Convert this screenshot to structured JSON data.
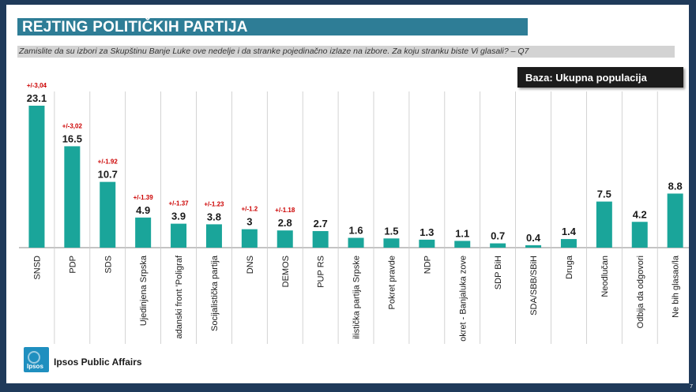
{
  "title": "REJTING POLITIČKIH PARTIJA",
  "question": "Zamislite da su izbori za Skupštinu Banje Luke ove nedelje i da stranke pojedinačno izlaze na izbore. Za koju stranku biste Vi glasali? – Q7",
  "base_label": "Baza: Ukupna populacija",
  "company": "Ipsos Public Affairs",
  "logo_text": "Ipsos",
  "page_number": "7",
  "colors": {
    "bar": "#1aa59a",
    "margin_text": "#cc0000",
    "title_bg": "#2e7d96"
  },
  "chart_data": {
    "type": "bar",
    "categories": [
      "SNSD",
      "PDP",
      "SDS",
      "Ujedinjena Srpska",
      "adanski front 'Poligraf",
      "Socijalistička partija",
      "DNS",
      "DEMOS",
      "PUP RS",
      "ilistička partija Srpske",
      "Pokret pravde",
      "NDP",
      "okret - Banjaluka zove",
      "SDP BiH",
      "SDA/SBB/SBiH",
      "Druga",
      "Neodlučan",
      "Odbija da odgovori",
      "Ne bih glasao/la"
    ],
    "values": [
      23.1,
      16.5,
      10.7,
      4.9,
      3.9,
      3.8,
      3,
      2.8,
      2.7,
      1.6,
      1.5,
      1.3,
      1.1,
      0.7,
      0.4,
      1.4,
      7.5,
      4.2,
      8.8
    ],
    "value_labels": [
      "23.1",
      "16.5",
      "10.7",
      "4.9",
      "3.9",
      "3.8",
      "3",
      "2.8",
      "2.7",
      "1.6",
      "1.5",
      "1.3",
      "1.1",
      "0.7",
      "0.4",
      "1.4",
      "7.5",
      "4.2",
      "8.8"
    ],
    "margins": [
      "+/-3,04",
      "+/-3,02",
      "+/-1.92",
      "+/-1.39",
      "+/-1.37",
      "+/-1.23",
      "+/-1.2",
      "+/-1.18",
      "",
      "",
      "",
      "",
      "",
      "",
      "",
      "",
      "",
      "",
      ""
    ],
    "ylim": [
      0,
      23.1
    ],
    "grid": false
  }
}
